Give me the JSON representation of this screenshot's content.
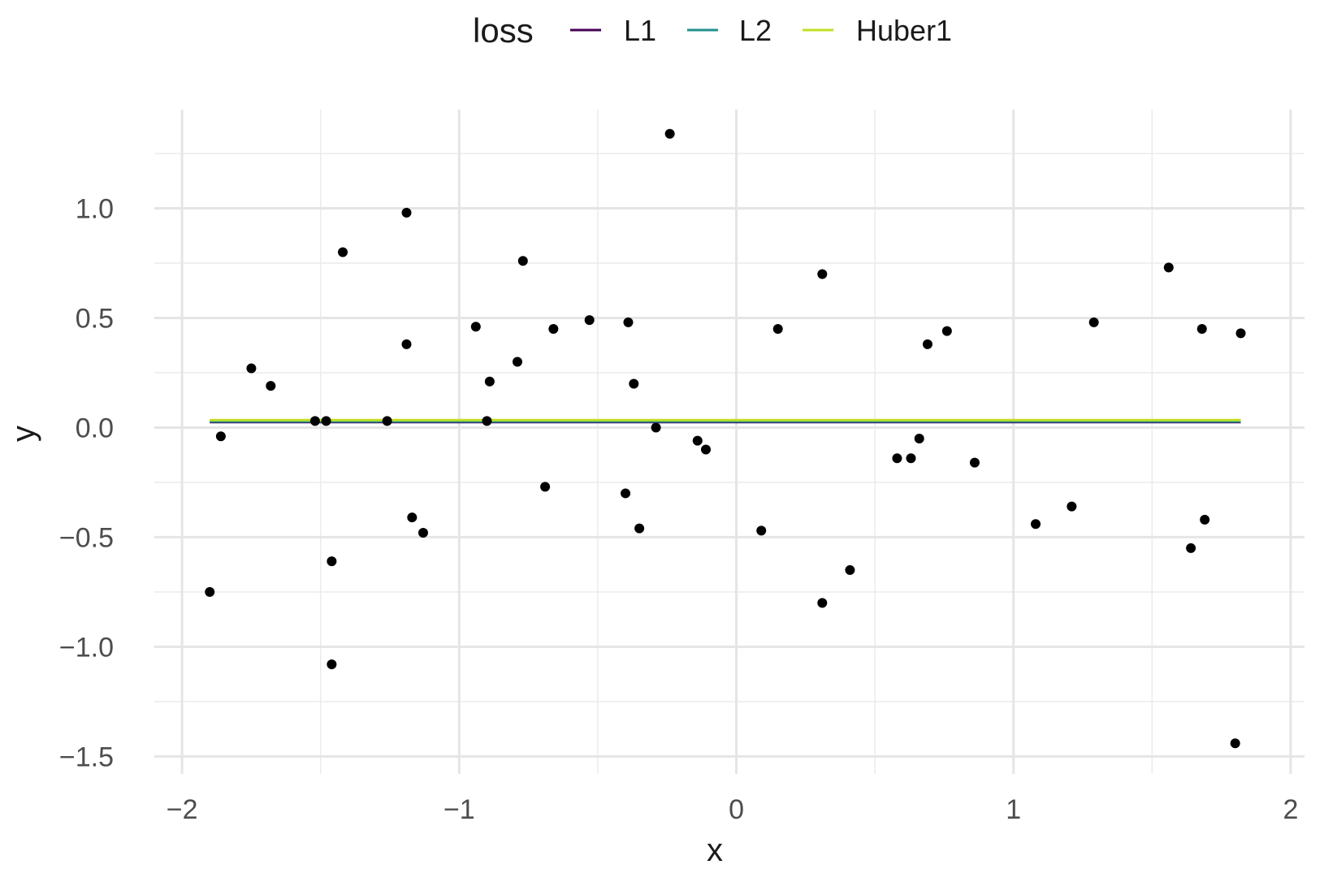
{
  "chart_data": {
    "type": "scatter",
    "title": "",
    "xlabel": "x",
    "ylabel": "y",
    "xlim": [
      -2.1,
      2.05
    ],
    "ylim": [
      -1.58,
      1.45
    ],
    "x_ticks": [
      -2,
      -1,
      0,
      1,
      2
    ],
    "x_tick_labels": [
      "−2",
      "−1",
      "0",
      "1",
      "2"
    ],
    "y_ticks": [
      -1.5,
      -1.0,
      -0.5,
      0.0,
      0.5,
      1.0
    ],
    "y_tick_labels": [
      "−1.5",
      "−1.0",
      "−0.5",
      "0.0",
      "0.5",
      "1.0"
    ],
    "grid": true,
    "legend": {
      "title": "loss",
      "position": "top",
      "entries": [
        {
          "label": "L1",
          "color": "#440154"
        },
        {
          "label": "L2",
          "color": "#21908C"
        },
        {
          "label": "Huber1",
          "color": "#C2DF23"
        }
      ]
    },
    "points": {
      "color": "#000000",
      "x": [
        -1.9,
        -1.86,
        -1.75,
        -1.68,
        -1.52,
        -1.48,
        -1.46,
        -1.46,
        -1.42,
        -1.26,
        -1.19,
        -1.19,
        -1.17,
        -1.13,
        -0.94,
        -0.89,
        -0.9,
        -0.79,
        -0.77,
        -0.69,
        -0.66,
        -0.53,
        -0.4,
        -0.39,
        -0.37,
        -0.35,
        -0.29,
        -0.24,
        -0.14,
        -0.11,
        0.09,
        0.15,
        0.31,
        0.31,
        0.41,
        0.58,
        0.63,
        0.66,
        0.69,
        0.76,
        0.86,
        1.08,
        1.21,
        1.29,
        1.56,
        1.64,
        1.68,
        1.69,
        1.8,
        1.82
      ],
      "y": [
        -0.75,
        -0.04,
        0.27,
        0.19,
        0.03,
        0.03,
        -0.61,
        -1.08,
        0.8,
        0.03,
        0.98,
        0.38,
        -0.41,
        -0.48,
        0.46,
        0.21,
        0.03,
        0.3,
        0.76,
        -0.27,
        0.45,
        0.49,
        -0.3,
        0.48,
        0.2,
        -0.46,
        0.0,
        1.34,
        -0.06,
        -0.1,
        -0.47,
        0.45,
        -0.8,
        0.7,
        -0.65,
        -0.14,
        -0.14,
        -0.05,
        0.38,
        0.44,
        -0.16,
        -0.44,
        -0.36,
        0.48,
        0.73,
        -0.55,
        0.45,
        -0.42,
        -1.44,
        0.43
      ]
    },
    "series": [
      {
        "name": "L1",
        "color": "#440154",
        "x": [
          -1.9,
          1.82
        ],
        "y": [
          0.025,
          0.025
        ]
      },
      {
        "name": "L2",
        "color": "#21908C",
        "x": [
          -1.9,
          1.82
        ],
        "y": [
          0.028,
          0.028
        ]
      },
      {
        "name": "Huber1",
        "color": "#C2DF23",
        "x": [
          -1.9,
          1.82
        ],
        "y": [
          0.034,
          0.034
        ]
      }
    ]
  }
}
